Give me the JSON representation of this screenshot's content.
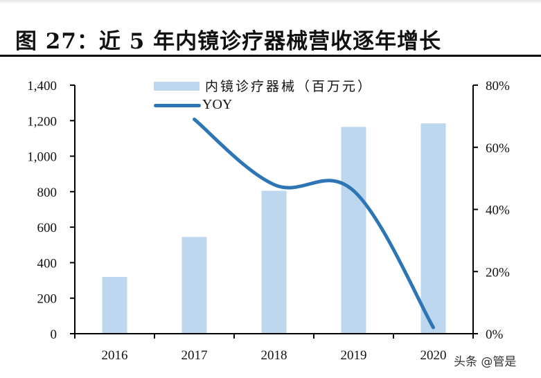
{
  "title": "图 27：近 5 年内镜诊疗器械营收逐年增长",
  "legend": {
    "bar_label": "内镜诊疗器械（百万元）",
    "line_label": "YOY"
  },
  "watermark": "头条 @管是",
  "colors": {
    "bar": "#bdd7ee",
    "line": "#2e75b6",
    "axis": "#000000"
  },
  "chart_data": {
    "type": "bar+line",
    "title": "图 27：近 5 年内镜诊疗器械营收逐年增长",
    "categories": [
      "2016",
      "2017",
      "2018",
      "2019",
      "2020"
    ],
    "series": [
      {
        "name": "内镜诊疗器械（百万元）",
        "type": "bar",
        "axis": "left",
        "values": [
          320,
          545,
          805,
          1165,
          1185
        ]
      },
      {
        "name": "YOY",
        "type": "line",
        "axis": "right",
        "values": [
          null,
          0.69,
          0.48,
          0.46,
          0.02
        ]
      }
    ],
    "left_axis": {
      "ylim": [
        0,
        1400
      ],
      "ticks": [
        "0",
        "200",
        "400",
        "600",
        "800",
        "1,000",
        "1,200",
        "1,400"
      ]
    },
    "right_axis": {
      "ylim": [
        0,
        0.8
      ],
      "ticks": [
        "0%",
        "20%",
        "40%",
        "60%",
        "80%"
      ]
    },
    "xlabel": "",
    "ylabel": "",
    "grid": false,
    "legend_position": "top-center"
  }
}
